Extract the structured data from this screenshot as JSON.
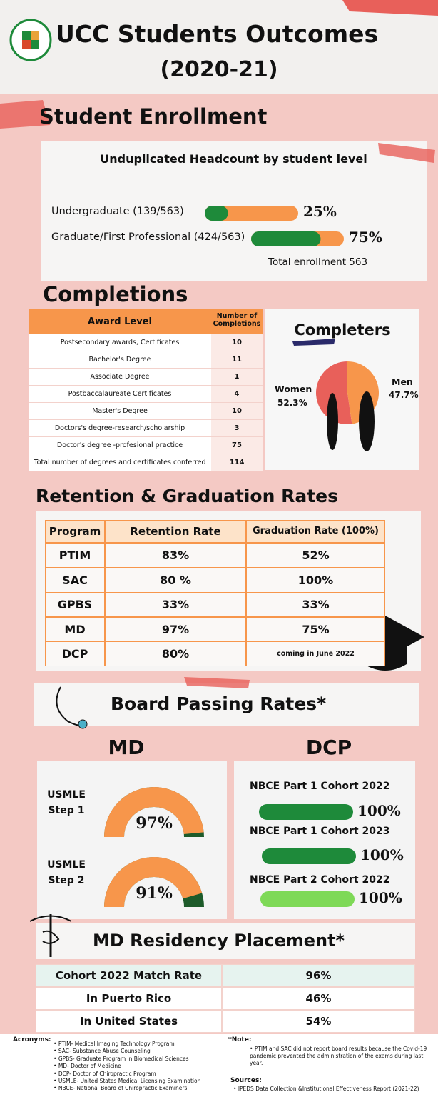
{
  "header": {
    "title": "UCC Students Outcomes",
    "subtitle": "(2020-21)"
  },
  "enrollment": {
    "heading": "Student Enrollment",
    "chart_title": "Unduplicated Headcount by student level",
    "categories": [
      "Undergraduate (139/563)",
      "Graduate/First Professional (424/563)"
    ],
    "values": [
      25,
      75
    ],
    "value_labels": [
      "25%",
      "75%"
    ],
    "xlim": [
      0,
      100
    ],
    "color": "#1e8a3a",
    "track_color": "#f7964b",
    "total": "Total enrollment 563"
  },
  "completions": {
    "heading": "Completions",
    "table": {
      "header": [
        "Award Level",
        "Number of Completions"
      ],
      "rows": [
        [
          "Postsecondary awards, Certificates",
          10
        ],
        [
          "Bachelor's Degree",
          11
        ],
        [
          "Associate Degree",
          1
        ],
        [
          "Postbaccalaureate Certificates",
          4
        ],
        [
          "Master's Degree",
          10
        ],
        [
          "Doctors's degree-research/scholarship",
          3
        ],
        [
          "Doctor's degree -profesional practice",
          75
        ],
        [
          "Total number of degrees and certificates conferred",
          114
        ]
      ]
    }
  },
  "completers": {
    "type": "pie",
    "title": "Completers",
    "categories": [
      "Women",
      "Men"
    ],
    "values": [
      52.3,
      47.7
    ],
    "value_labels": [
      "52.3%",
      "47.7%"
    ],
    "colors": [
      "#e8605a",
      "#f7964b"
    ]
  },
  "retention": {
    "heading": "Retention & Graduation Rates",
    "table": {
      "header": [
        "Program",
        "Retention Rate",
        "Graduation Rate (100%)"
      ],
      "rows": [
        [
          "PTIM",
          "83%",
          "52%"
        ],
        [
          "SAC",
          "80 %",
          "100%"
        ],
        [
          "GPBS",
          "33%",
          "33%"
        ],
        [
          "MD",
          "97%",
          "75%"
        ],
        [
          "DCP",
          "80%",
          "coming in June 2022"
        ]
      ]
    }
  },
  "board": {
    "heading": "Board Passing Rates*",
    "md": {
      "title": "MD",
      "lim": [
        0,
        100
      ],
      "color": "#f7964b",
      "track_color": "#1d5b2a",
      "items": [
        {
          "label": "USMLE Step 1",
          "value": 97,
          "value_label": "97%"
        },
        {
          "label": "USMLE Step 2",
          "value": 91,
          "value_label": "91%"
        }
      ]
    },
    "dcp": {
      "title": "DCP",
      "lim": [
        0,
        100
      ],
      "items": [
        {
          "label": "NBCE Part 1 Cohort 2022",
          "value": 100,
          "value_label": "100%",
          "color": "#1e8a3a"
        },
        {
          "label": "NBCE Part 1 Cohort 2023",
          "value": 100,
          "value_label": "100%",
          "color": "#1e8a3a"
        },
        {
          "label": "NBCE Part 2 Cohort 2022",
          "value": 100,
          "value_label": "100%",
          "color": "#7ed957"
        }
      ]
    }
  },
  "residency": {
    "heading": "MD Residency Placement*",
    "rows": [
      [
        "Cohort 2022 Match Rate",
        "96%"
      ],
      [
        "In Puerto Rico",
        "46%"
      ],
      [
        "In United States",
        "54%"
      ]
    ]
  },
  "footer": {
    "acronyms_label": "Acronyms:",
    "acronyms": [
      "PTIM- Medical Imaging Technology Program",
      "SAC- Substance Abuse Counseling",
      "GPBS- Graduate Program in Biomedical Sciences",
      "MD- Doctor of Medicine",
      "DCP- Doctor of Chiropractic Program",
      "USMLE- United States Medical Licensing Examination",
      "NBCE- National Board of Chiropractic Examiners"
    ],
    "note_label": "*Note:",
    "note": "PTIM and SAC did not report board results  because  the Covid-19  pandemic prevented the administration of the exams during last year.",
    "sources_label": "Sources:",
    "sources": [
      "IPEDS Data Collection &Institutional Effectiveness Report (2021-22)"
    ]
  }
}
